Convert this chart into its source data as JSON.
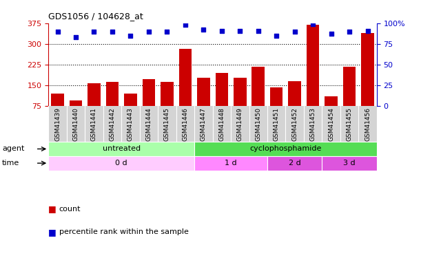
{
  "title": "GDS1056 / 104628_at",
  "samples": [
    "GSM41439",
    "GSM41440",
    "GSM41441",
    "GSM41442",
    "GSM41443",
    "GSM41444",
    "GSM41445",
    "GSM41446",
    "GSM41447",
    "GSM41448",
    "GSM41449",
    "GSM41450",
    "GSM41451",
    "GSM41452",
    "GSM41453",
    "GSM41454",
    "GSM41455",
    "GSM41456"
  ],
  "counts": [
    120,
    97,
    158,
    163,
    122,
    172,
    162,
    283,
    178,
    195,
    178,
    218,
    143,
    165,
    370,
    112,
    218,
    340
  ],
  "percentile_ranks": [
    90,
    83,
    90,
    90,
    85,
    90,
    90,
    98,
    92,
    91,
    91,
    91,
    85,
    90,
    99,
    87,
    90,
    91
  ],
  "bar_color": "#cc0000",
  "dot_color": "#0000cc",
  "ylim_left": [
    75,
    375
  ],
  "ylim_right": [
    0,
    100
  ],
  "yticks_left": [
    75,
    150,
    225,
    300,
    375
  ],
  "yticks_right": [
    0,
    25,
    50,
    75,
    100
  ],
  "agent_groups": [
    {
      "label": "untreated",
      "start": 0,
      "end": 8,
      "color": "#aaffaa"
    },
    {
      "label": "cyclophosphamide",
      "start": 8,
      "end": 18,
      "color": "#55dd55"
    }
  ],
  "time_groups": [
    {
      "label": "0 d",
      "start": 0,
      "end": 8,
      "color": "#ffccff"
    },
    {
      "label": "1 d",
      "start": 8,
      "end": 12,
      "color": "#ff88ff"
    },
    {
      "label": "2 d",
      "start": 12,
      "end": 15,
      "color": "#dd55dd"
    },
    {
      "label": "3 d",
      "start": 15,
      "end": 18,
      "color": "#dd55dd"
    }
  ],
  "legend_count_label": "count",
  "legend_pct_label": "percentile rank within the sample",
  "bg_color": "#ffffff",
  "tick_bg_color": "#d4d4d4",
  "left_label_color": "#000000"
}
